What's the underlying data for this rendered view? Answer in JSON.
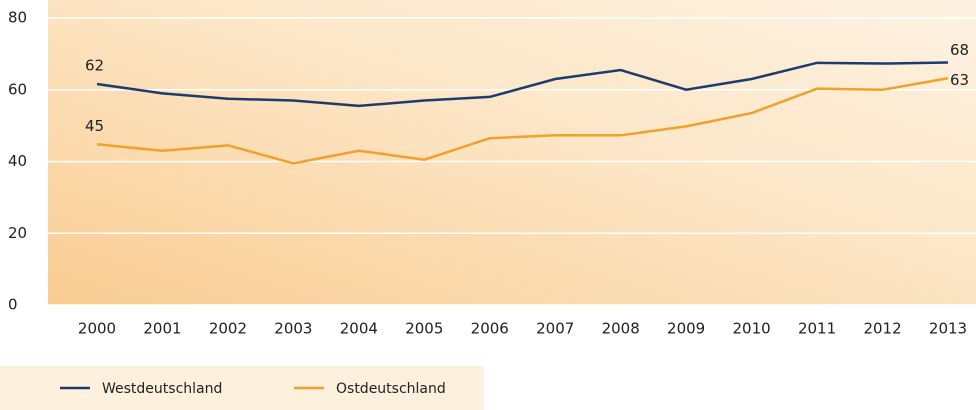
{
  "chart_data": {
    "type": "line",
    "categories": [
      "2000",
      "2001",
      "2002",
      "2003",
      "2004",
      "2005",
      "2006",
      "2007",
      "2008",
      "2009",
      "2010",
      "2011",
      "2012",
      "2013"
    ],
    "series": [
      {
        "name": "Westdeutschland",
        "color": "#1d3c6e",
        "values": [
          61.6,
          59,
          57.5,
          57,
          55.5,
          57,
          58,
          63,
          65.5,
          60,
          63,
          67.5,
          67.3,
          67.6
        ],
        "value_labels": [
          "62",
          null,
          null,
          null,
          null,
          null,
          null,
          null,
          null,
          null,
          null,
          null,
          null,
          "68"
        ]
      },
      {
        "name": "Ostdeutschland",
        "color": "#f1a12a",
        "values": [
          44.8,
          43,
          44.5,
          39.5,
          43,
          40.5,
          46.5,
          47.3,
          47.3,
          49.8,
          53.5,
          60.3,
          60,
          63.2
        ],
        "value_labels": [
          "45",
          null,
          null,
          null,
          null,
          null,
          null,
          null,
          null,
          null,
          null,
          null,
          null,
          "63"
        ]
      }
    ],
    "ylim": [
      0,
      80
    ],
    "yticks": [
      0,
      20,
      40,
      60,
      80
    ],
    "grid": true
  }
}
